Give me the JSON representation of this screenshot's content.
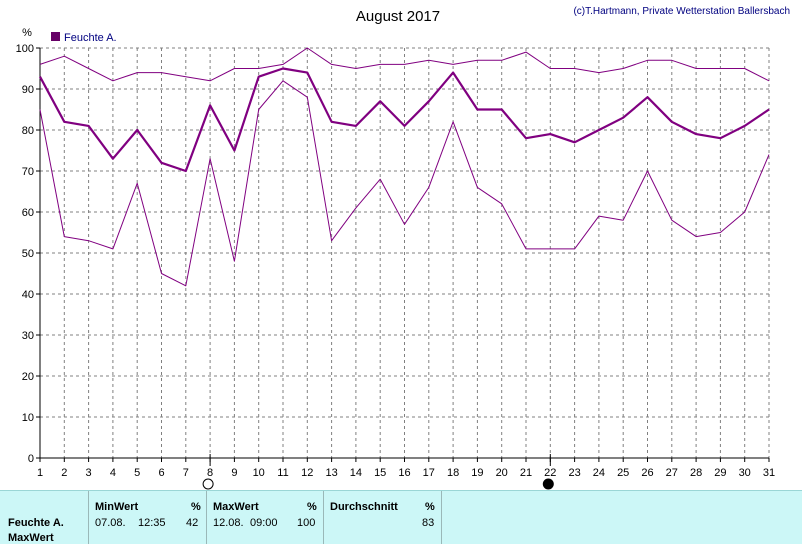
{
  "chart_data": {
    "type": "line",
    "title": "August 2017",
    "copyright": "(c)T.Hartmann, Private Wetterstation Ballersbach",
    "ylabel": "%",
    "xlabel": "",
    "ylim": [
      0,
      100
    ],
    "yticks": [
      0,
      10,
      20,
      30,
      40,
      50,
      60,
      70,
      80,
      90,
      100
    ],
    "xlim": [
      1,
      31
    ],
    "x": [
      1,
      2,
      3,
      4,
      5,
      6,
      7,
      8,
      9,
      10,
      11,
      12,
      13,
      14,
      15,
      16,
      17,
      18,
      19,
      20,
      21,
      22,
      23,
      24,
      25,
      26,
      27,
      28,
      29,
      30,
      31
    ],
    "grid": true,
    "legend": {
      "position": "top-left",
      "entries": [
        "Feuchte A."
      ]
    },
    "series": [
      {
        "role": "max",
        "values": [
          96,
          98,
          95,
          92,
          94,
          94,
          93,
          92,
          95,
          95,
          96,
          100,
          96,
          95,
          96,
          96,
          97,
          96,
          97,
          97,
          99,
          95,
          95,
          94,
          95,
          97,
          97,
          95,
          95,
          95,
          92
        ]
      },
      {
        "name": "Feuchte A.",
        "role": "mean",
        "values": [
          93,
          82,
          81,
          73,
          80,
          72,
          70,
          86,
          75,
          93,
          95,
          94,
          82,
          81,
          87,
          81,
          87,
          94,
          85,
          85,
          78,
          79,
          77,
          80,
          83,
          88,
          82,
          79,
          78,
          81,
          85
        ]
      },
      {
        "role": "min",
        "values": [
          85,
          54,
          53,
          51,
          67,
          45,
          42,
          73,
          48,
          85,
          92,
          88,
          53,
          61,
          68,
          57,
          66,
          82,
          66,
          62,
          51,
          51,
          51,
          59,
          58,
          70,
          58,
          54,
          55,
          60,
          74
        ]
      }
    ],
    "moon_markers": [
      {
        "day": 8,
        "phase": "full"
      },
      {
        "day": 22,
        "phase": "new"
      }
    ],
    "colors": {
      "line": "#800080",
      "legend_swatch": "#660066",
      "axis": "#000000",
      "grid": "#808080"
    }
  },
  "stats": {
    "headers": {
      "min": "MinWert",
      "max": "MaxWert",
      "avg": "Durchschnitt",
      "unit": "%"
    },
    "row_label": "Feuchte A.",
    "row_label2": "MaxWert",
    "min_date": "07.08.",
    "min_time": "12:35",
    "min_value": "42",
    "max_date": "12.08.",
    "max_time": "09:00",
    "max_value": "100",
    "avg_value": "83"
  }
}
